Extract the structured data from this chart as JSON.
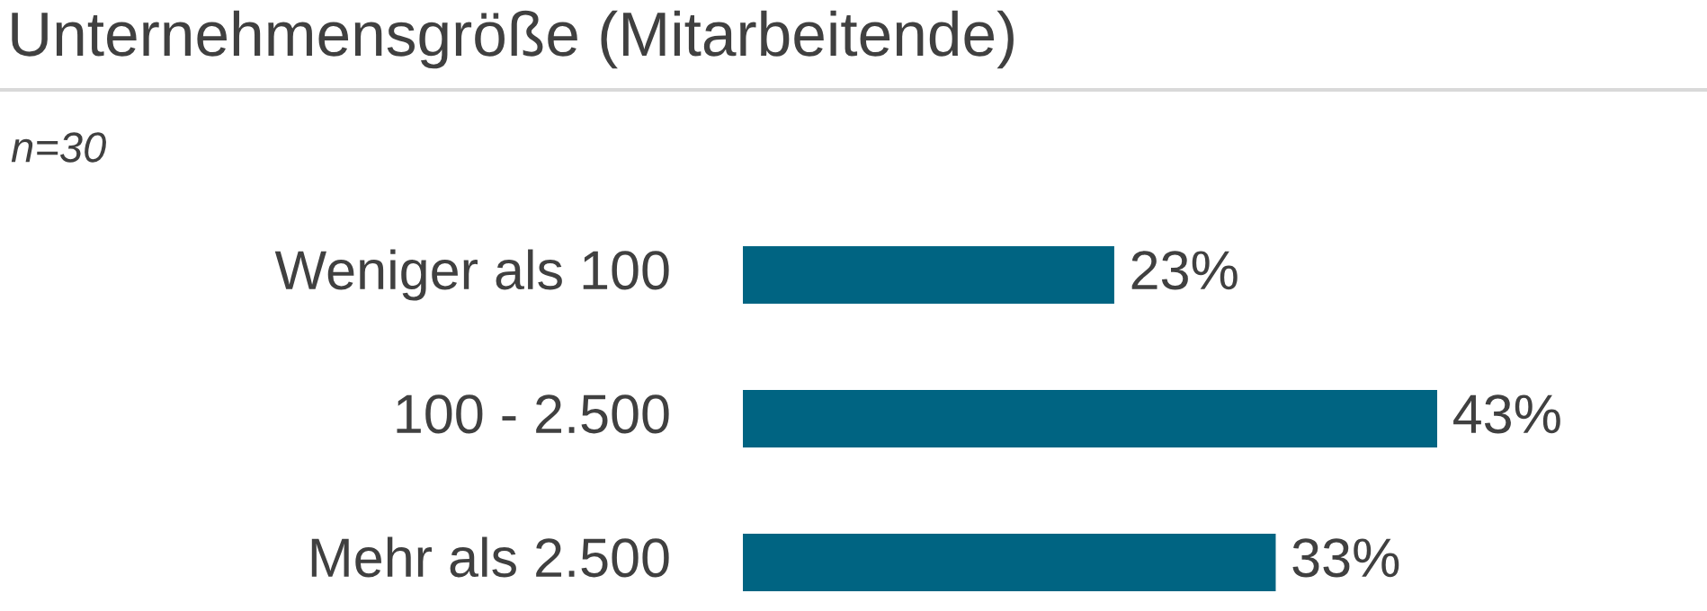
{
  "chart_data": {
    "type": "bar",
    "orientation": "horizontal",
    "title": "Unternehmensgröße (Mitarbeitende)",
    "subtitle": "n=30",
    "categories": [
      "Weniger als 100",
      "100 - 2.500",
      "Mehr als 2.500"
    ],
    "values": [
      23,
      43,
      33
    ],
    "value_labels": [
      "23%",
      "43%",
      "33%"
    ],
    "color": "#006482"
  }
}
